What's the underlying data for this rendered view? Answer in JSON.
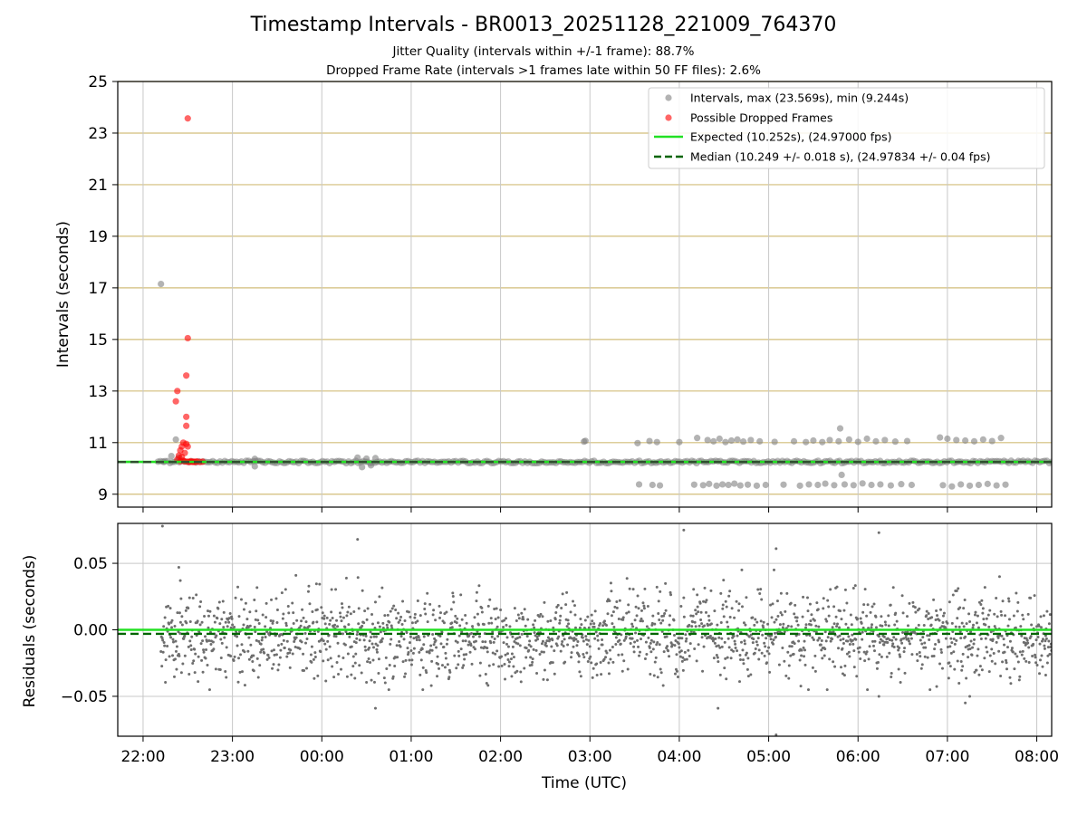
{
  "title": "Timestamp Intervals - BR0013_20251128_221009_764370",
  "subtitle_1": "Jitter Quality (intervals within +/-1 frame): 88.7%",
  "subtitle_2": "Dropped Frame Rate (intervals >1 frames late within 50 FF files): 2.6%",
  "colors": {
    "intervals": "#808080",
    "dropped": "#ff0000",
    "expected": "#22e022",
    "median": "#006400",
    "hgrid": "#d2be7a",
    "vgrid": "#c8c8c8",
    "residuals": "#6e6e6e"
  },
  "chart_data": [
    {
      "type": "scatter",
      "panel": "top",
      "ylabel": "Intervals (seconds)",
      "ylim": [
        8.5,
        25
      ],
      "yticks": [
        "9",
        "11",
        "13",
        "15",
        "17",
        "19",
        "21",
        "23",
        "25"
      ],
      "xlim": [
        "21:43",
        "08:10"
      ],
      "xticks": [
        "22:00",
        "23:00",
        "00:00",
        "01:00",
        "02:00",
        "03:00",
        "04:00",
        "05:00",
        "06:00",
        "07:00",
        "08:00"
      ],
      "grid": "horizontal lines at y ticks, vertical lines at x ticks",
      "legend_position": "top-right",
      "legend": [
        "Intervals, max (23.569s), min (9.244s)",
        "Possible Dropped Frames",
        "Expected (10.252s), (24.97000 fps)",
        "Median (10.249 +/- 0.018 s), (24.97834 +/- 0.04 fps)"
      ],
      "lines": [
        {
          "name": "Expected (10.252s), (24.97000 fps)",
          "y": 10.252,
          "style": "solid"
        },
        {
          "name": "Median (10.249 +/- 0.018 s), (24.97834 +/- 0.04 fps)",
          "y": 10.249,
          "style": "dashed"
        }
      ],
      "baseline_band": {
        "from": "22:10",
        "to": "08:10",
        "center": 10.25,
        "spread": 0.05
      },
      "series": [
        {
          "name": "Intervals, max (23.569s), min (9.244s)",
          "points": [
            {
              "x": "22:12",
              "y": 17.15
            },
            {
              "x": "22:14",
              "y": 10.25
            },
            {
              "x": "22:19",
              "y": 10.48
            },
            {
              "x": "22:22",
              "y": 11.12
            },
            {
              "x": "22:24",
              "y": 10.42
            },
            {
              "x": "23:15",
              "y": 10.37
            },
            {
              "x": "23:15",
              "y": 10.08
            },
            {
              "x": "00:24",
              "y": 10.42
            },
            {
              "x": "00:27",
              "y": 10.05
            },
            {
              "x": "00:30",
              "y": 10.38
            },
            {
              "x": "00:33",
              "y": 10.12
            },
            {
              "x": "00:36",
              "y": 10.4
            },
            {
              "x": "02:56",
              "y": 11.04
            },
            {
              "x": "02:57",
              "y": 11.07
            },
            {
              "x": "03:32",
              "y": 10.98
            },
            {
              "x": "03:33",
              "y": 9.38
            },
            {
              "x": "03:40",
              "y": 11.06
            },
            {
              "x": "03:42",
              "y": 9.36
            },
            {
              "x": "03:45",
              "y": 11.02
            },
            {
              "x": "03:47",
              "y": 9.34
            },
            {
              "x": "04:00",
              "y": 11.02
            },
            {
              "x": "04:10",
              "y": 9.37
            },
            {
              "x": "04:12",
              "y": 11.18
            },
            {
              "x": "04:16",
              "y": 9.35
            },
            {
              "x": "04:19",
              "y": 11.1
            },
            {
              "x": "04:20",
              "y": 9.4
            },
            {
              "x": "04:23",
              "y": 11.05
            },
            {
              "x": "04:25",
              "y": 9.33
            },
            {
              "x": "04:27",
              "y": 11.15
            },
            {
              "x": "04:29",
              "y": 9.38
            },
            {
              "x": "04:31",
              "y": 11.02
            },
            {
              "x": "04:33",
              "y": 9.36
            },
            {
              "x": "04:35",
              "y": 11.08
            },
            {
              "x": "04:37",
              "y": 9.41
            },
            {
              "x": "04:39",
              "y": 11.12
            },
            {
              "x": "04:41",
              "y": 9.34
            },
            {
              "x": "04:43",
              "y": 11.04
            },
            {
              "x": "04:46",
              "y": 9.37
            },
            {
              "x": "04:48",
              "y": 11.1
            },
            {
              "x": "04:52",
              "y": 9.33
            },
            {
              "x": "04:54",
              "y": 11.05
            },
            {
              "x": "04:58",
              "y": 9.36
            },
            {
              "x": "05:04",
              "y": 11.03
            },
            {
              "x": "05:10",
              "y": 9.37
            },
            {
              "x": "05:17",
              "y": 11.05
            },
            {
              "x": "05:21",
              "y": 9.33
            },
            {
              "x": "05:25",
              "y": 11.02
            },
            {
              "x": "05:27",
              "y": 9.38
            },
            {
              "x": "05:30",
              "y": 11.08
            },
            {
              "x": "05:33",
              "y": 9.36
            },
            {
              "x": "05:36",
              "y": 11.02
            },
            {
              "x": "05:38",
              "y": 9.41
            },
            {
              "x": "05:41",
              "y": 11.1
            },
            {
              "x": "05:44",
              "y": 9.35
            },
            {
              "x": "05:47",
              "y": 11.05
            },
            {
              "x": "05:48",
              "y": 11.55
            },
            {
              "x": "05:49",
              "y": 9.75
            },
            {
              "x": "05:51",
              "y": 9.38
            },
            {
              "x": "05:54",
              "y": 11.12
            },
            {
              "x": "05:57",
              "y": 9.35
            },
            {
              "x": "06:00",
              "y": 11.03
            },
            {
              "x": "06:03",
              "y": 9.42
            },
            {
              "x": "06:06",
              "y": 11.15
            },
            {
              "x": "06:09",
              "y": 9.36
            },
            {
              "x": "06:12",
              "y": 11.05
            },
            {
              "x": "06:15",
              "y": 9.38
            },
            {
              "x": "06:18",
              "y": 11.1
            },
            {
              "x": "06:22",
              "y": 9.34
            },
            {
              "x": "06:25",
              "y": 11.04
            },
            {
              "x": "06:29",
              "y": 9.39
            },
            {
              "x": "06:33",
              "y": 11.06
            },
            {
              "x": "06:36",
              "y": 9.36
            },
            {
              "x": "06:55",
              "y": 11.2
            },
            {
              "x": "06:57",
              "y": 9.35
            },
            {
              "x": "07:00",
              "y": 11.15
            },
            {
              "x": "07:03",
              "y": 9.3
            },
            {
              "x": "07:06",
              "y": 11.1
            },
            {
              "x": "07:09",
              "y": 9.38
            },
            {
              "x": "07:12",
              "y": 11.08
            },
            {
              "x": "07:15",
              "y": 9.33
            },
            {
              "x": "07:18",
              "y": 11.05
            },
            {
              "x": "07:21",
              "y": 9.36
            },
            {
              "x": "07:24",
              "y": 11.12
            },
            {
              "x": "07:27",
              "y": 9.4
            },
            {
              "x": "07:30",
              "y": 11.06
            },
            {
              "x": "07:33",
              "y": 9.34
            },
            {
              "x": "07:36",
              "y": 11.18
            },
            {
              "x": "07:39",
              "y": 9.37
            }
          ]
        },
        {
          "name": "Possible Dropped Frames",
          "points": [
            {
              "x": "22:30",
              "y": 23.57
            },
            {
              "x": "22:30",
              "y": 15.05
            },
            {
              "x": "22:29",
              "y": 13.6
            },
            {
              "x": "22:23",
              "y": 13.0
            },
            {
              "x": "22:22",
              "y": 12.6
            },
            {
              "x": "22:29",
              "y": 12.0
            },
            {
              "x": "22:29",
              "y": 11.65
            },
            {
              "x": "22:27",
              "y": 11.0
            },
            {
              "x": "22:29",
              "y": 10.95
            },
            {
              "x": "22:26",
              "y": 10.85
            },
            {
              "x": "22:30",
              "y": 10.85
            },
            {
              "x": "22:25",
              "y": 10.7
            },
            {
              "x": "22:28",
              "y": 10.6
            },
            {
              "x": "22:24",
              "y": 10.5
            },
            {
              "x": "22:26",
              "y": 10.45
            },
            {
              "x": "22:23",
              "y": 10.35
            },
            {
              "x": "22:27",
              "y": 10.3
            },
            {
              "x": "22:25",
              "y": 10.28
            },
            {
              "x": "22:28",
              "y": 10.27
            },
            {
              "x": "22:30",
              "y": 10.26
            },
            {
              "x": "22:31",
              "y": 10.25
            },
            {
              "x": "22:32",
              "y": 10.28
            },
            {
              "x": "22:33",
              "y": 10.25
            },
            {
              "x": "22:34",
              "y": 10.26
            },
            {
              "x": "22:35",
              "y": 10.25
            },
            {
              "x": "22:36",
              "y": 10.27
            },
            {
              "x": "22:38",
              "y": 10.25
            },
            {
              "x": "22:40",
              "y": 10.26
            }
          ]
        }
      ]
    },
    {
      "type": "scatter",
      "panel": "bottom",
      "xlabel": "Time (UTC)",
      "ylabel": "Residuals (seconds)",
      "ylim": [
        -0.08,
        0.08
      ],
      "yticks": [
        "−0.05",
        "0.00",
        "0.05"
      ],
      "xlim": [
        "21:43",
        "08:10"
      ],
      "xticks": [
        "22:00",
        "23:00",
        "00:00",
        "01:00",
        "02:00",
        "03:00",
        "04:00",
        "05:00",
        "06:00",
        "07:00",
        "08:00"
      ],
      "grid": "horizontal and vertical lines at ticks",
      "lines": [
        {
          "name": "Expected",
          "y": 0.0,
          "style": "solid"
        },
        {
          "name": "Median",
          "y": -0.003,
          "style": "dashed"
        }
      ],
      "residual_cloud": {
        "from": "22:12",
        "to": "08:10",
        "mean": -0.004,
        "sd": 0.016
      },
      "series": [
        {
          "name": "Residuals",
          "points": [
            {
              "x": "22:13",
              "y": 0.078
            },
            {
              "x": "22:24",
              "y": 0.047
            },
            {
              "x": "22:25",
              "y": 0.037
            },
            {
              "x": "00:24",
              "y": 0.068
            },
            {
              "x": "00:36",
              "y": -0.059
            },
            {
              "x": "04:03",
              "y": 0.075
            },
            {
              "x": "04:26",
              "y": -0.059
            },
            {
              "x": "05:05",
              "y": 0.061
            },
            {
              "x": "05:05",
              "y": -0.079
            },
            {
              "x": "06:14",
              "y": 0.073
            },
            {
              "x": "06:14",
              "y": -0.05
            },
            {
              "x": "07:15",
              "y": -0.05
            },
            {
              "x": "07:12",
              "y": -0.055
            },
            {
              "x": "07:35",
              "y": 0.04
            },
            {
              "x": "08:06",
              "y": -0.034
            }
          ]
        }
      ]
    }
  ]
}
